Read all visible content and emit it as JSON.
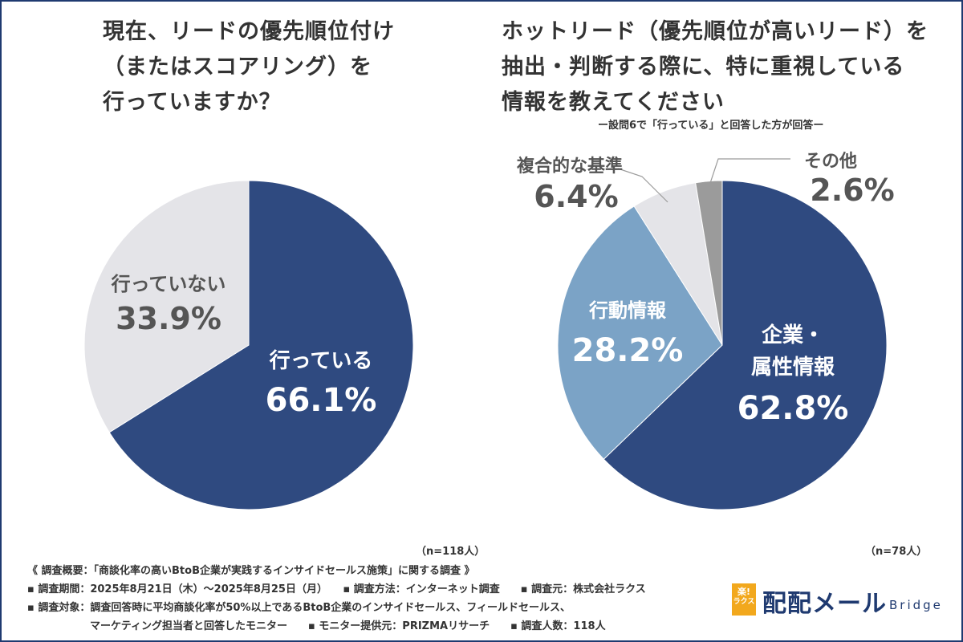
{
  "colors": {
    "navy": "#2f4a80",
    "light_blue": "#7ba3c6",
    "light_gray": "#e4e4e8",
    "dark_gray": "#9b9b9b",
    "frame": "#1f3a70",
    "logo_orange": "#f2a81d"
  },
  "left": {
    "title_lines": [
      "現在、リードの優先順位付け",
      "（またはスコアリング）を",
      "行っていますか？"
    ],
    "n_label": "（n=118人）"
  },
  "right": {
    "title_lines": [
      "ホットリード（優先順位が高いリード）を",
      "抽出・判断する際に、特に重視している",
      "情報を教えてください"
    ],
    "subnote": "ー設問6で「行っている」と回答した方が回答ー",
    "n_label": "（n=78人）"
  },
  "chart_data": [
    {
      "type": "pie",
      "title": "現在、リードの優先順位付け（またはスコアリング）を行っていますか？",
      "slices": [
        {
          "label": "行っている",
          "value": 66.1,
          "value_label": "66.1%",
          "color": "#2f4a80"
        },
        {
          "label": "行っていない",
          "value": 33.9,
          "value_label": "33.9%",
          "color": "#e4e4e8"
        }
      ]
    },
    {
      "type": "pie",
      "title": "ホットリード（優先順位が高いリード）を抽出・判断する際に、特に重視している情報を教えてください",
      "slices": [
        {
          "label": "企業・属性情報",
          "label_lines": [
            "企業・",
            "属性情報"
          ],
          "value": 62.8,
          "value_label": "62.8%",
          "color": "#2f4a80"
        },
        {
          "label": "行動情報",
          "label_lines": [
            "行動情報"
          ],
          "value": 28.2,
          "value_label": "28.2%",
          "color": "#7ba3c6"
        },
        {
          "label": "複合的な基準",
          "label_lines": [
            "複合的な基準"
          ],
          "value": 6.4,
          "value_label": "6.4%",
          "color": "#e4e4e8"
        },
        {
          "label": "その他",
          "label_lines": [
            "その他"
          ],
          "value": 2.6,
          "value_label": "2.6%",
          "color": "#9b9b9b"
        }
      ]
    }
  ],
  "footer": {
    "line1": "《 調査概要：「商談化率の高いBtoB企業が実践するインサイドセールス施策」に関する調査 》",
    "line2": "▪ 調査期間：2025年8月21日（木）～2025年8月25日（月）　　▪ 調査方法：インターネット調査　　▪ 調査元：株式会社ラクス",
    "line3": "▪ 調査対象：調査回答時に平均商談化率が50%以上であるBtoB企業のインサイドセールス、フィールドセールス、",
    "line4": "マーケティング担当者と回答したモニター　　▪ モニター提供元：PRIZMAリサーチ　　▪ 調査人数：118人"
  },
  "logo": {
    "badge_top": "楽!",
    "badge_bottom": "ラクス",
    "name": "配配メール",
    "sub": "Bridge"
  }
}
